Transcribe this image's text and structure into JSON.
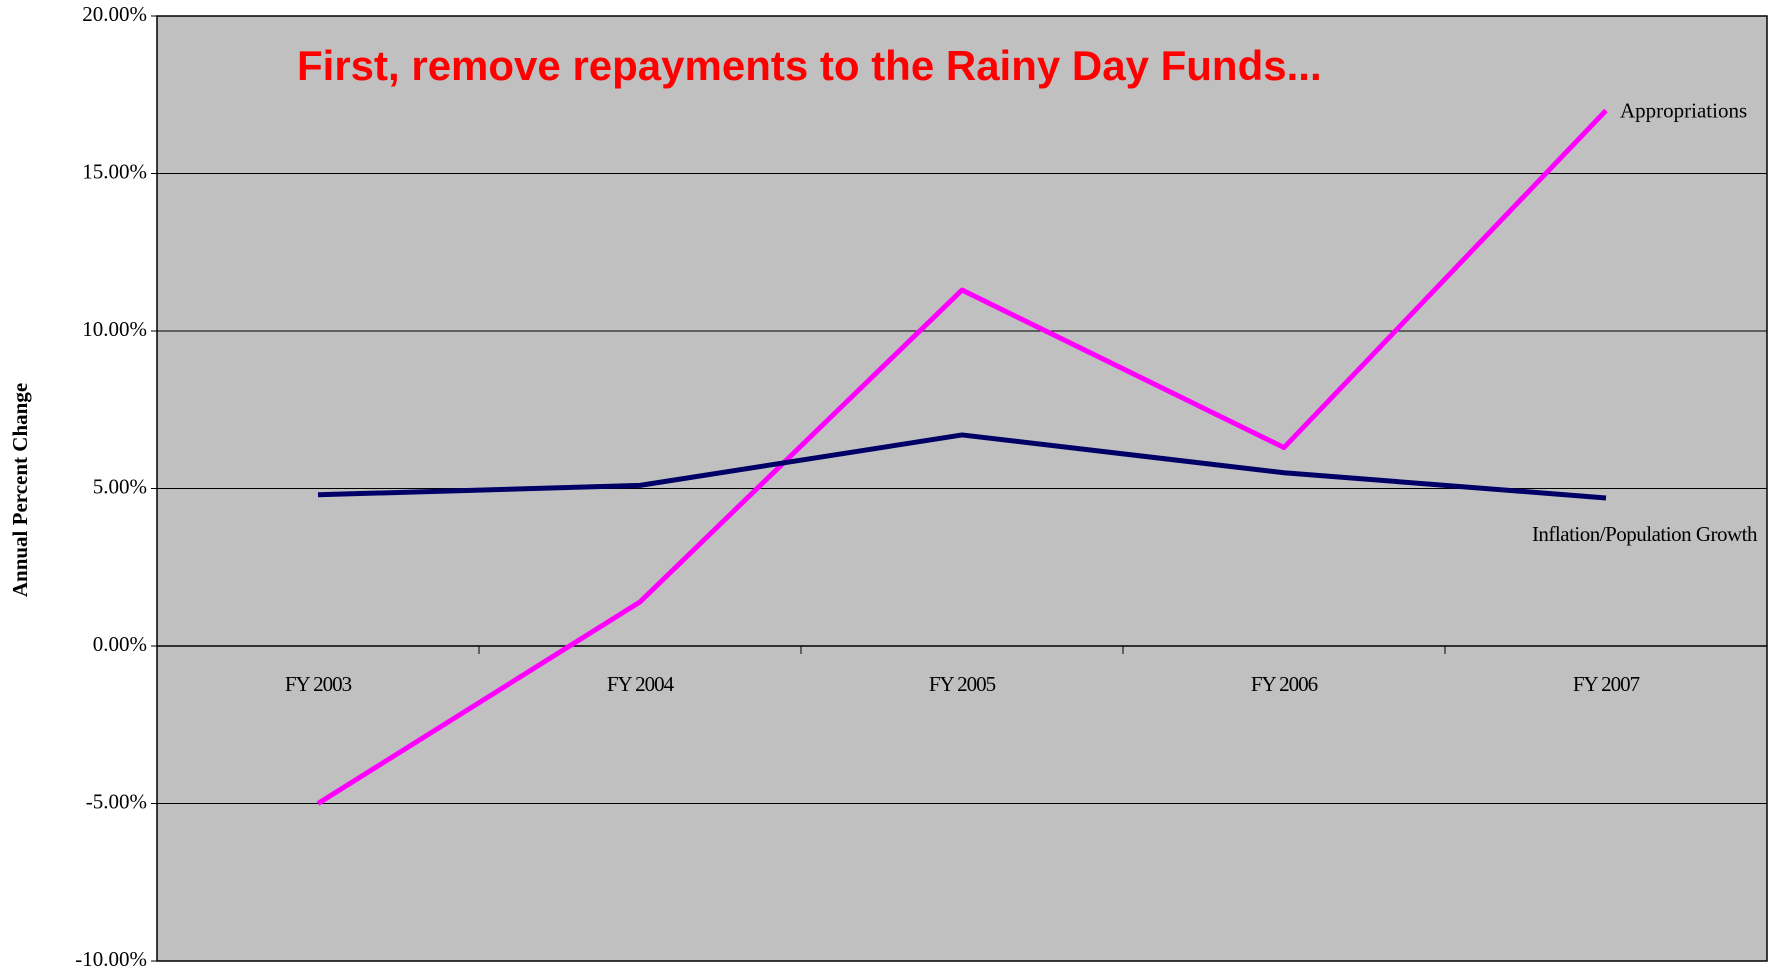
{
  "chart_data": {
    "type": "line",
    "title": "First, remove repayments to the Rainy Day Funds...",
    "y_label": "Annual Percent Change",
    "categories": [
      "FY 2003",
      "FY 2004",
      "FY 2005",
      "FY 2006",
      "FY 2007"
    ],
    "series": [
      {
        "name": "Appropriations",
        "color": "#ff00ff",
        "values": [
          -5.0,
          1.4,
          11.3,
          6.3,
          17.0
        ]
      },
      {
        "name": "Inflation/Population Growth",
        "color": "#000066",
        "values": [
          4.8,
          5.1,
          6.7,
          5.5,
          4.7
        ]
      }
    ],
    "ylim": [
      -10,
      20
    ],
    "yticks": [
      {
        "value": -10,
        "label": "-10.00%"
      },
      {
        "value": -5,
        "label": "-5.00%"
      },
      {
        "value": 0,
        "label": "0.00%"
      },
      {
        "value": 5,
        "label": "5.00%"
      },
      {
        "value": 10,
        "label": "10.00%"
      },
      {
        "value": 15,
        "label": "15.00%"
      },
      {
        "value": 20,
        "label": "20.00%"
      }
    ],
    "grid": true,
    "plot_background": "#c0c0c0"
  }
}
